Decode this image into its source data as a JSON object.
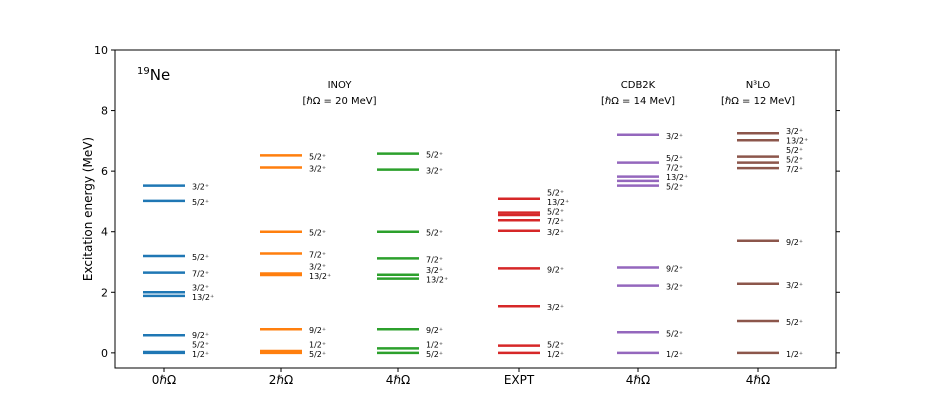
{
  "chart_data": {
    "type": "level-scheme",
    "ylabel": "Excitation energy (MeV)",
    "ylim": [
      -0.5,
      10
    ],
    "yticks": [
      0,
      2,
      4,
      6,
      8,
      10
    ],
    "nucleus": {
      "mass": "19",
      "symbol": "Ne"
    },
    "method_titles": [
      {
        "line1": "INOY",
        "line2": "[ℏΩ = 20 MeV]",
        "column_span": [
          1,
          2
        ]
      },
      {
        "line1": "CDB2K",
        "line2": "[ℏΩ = 14 MeV]",
        "column_span": [
          4,
          4
        ]
      },
      {
        "line1": "N³LO",
        "line2": "[ℏΩ = 12 MeV]",
        "column_span": [
          5,
          5
        ]
      }
    ],
    "columns": [
      {
        "label": "0ℏΩ",
        "color": "#1f77b4",
        "levels": [
          {
            "e": 5.52,
            "spin": "3/2⁺"
          },
          {
            "e": 5.02,
            "spin": "5/2⁺"
          },
          {
            "e": 3.2,
            "spin": "5/2⁺"
          },
          {
            "e": 2.65,
            "spin": "7/2⁺"
          },
          {
            "e": 2.0,
            "spin": "3/2⁺"
          },
          {
            "e": 1.88,
            "spin": "13/2⁺"
          },
          {
            "e": 0.58,
            "spin": "9/2⁺"
          },
          {
            "e": 0.03,
            "spin": "5/2⁺"
          },
          {
            "e": 0.0,
            "spin": "1/2⁺"
          }
        ]
      },
      {
        "label": "2ℏΩ",
        "color": "#ff7f0e",
        "levels": [
          {
            "e": 6.52,
            "spin": "5/2⁺"
          },
          {
            "e": 6.12,
            "spin": "3/2⁺"
          },
          {
            "e": 4.0,
            "spin": "5/2⁺"
          },
          {
            "e": 3.28,
            "spin": "7/2⁺"
          },
          {
            "e": 2.62,
            "spin": "3/2⁺"
          },
          {
            "e": 2.57,
            "spin": "13/2⁺"
          },
          {
            "e": 0.78,
            "spin": "9/2⁺"
          },
          {
            "e": 0.06,
            "spin": "1/2⁺"
          },
          {
            "e": 0.0,
            "spin": "5/2⁺"
          }
        ]
      },
      {
        "label": "4ℏΩ",
        "color": "#2ca02c",
        "levels": [
          {
            "e": 6.58,
            "spin": "5/2⁺"
          },
          {
            "e": 6.05,
            "spin": "3/2⁺"
          },
          {
            "e": 4.0,
            "spin": "5/2⁺"
          },
          {
            "e": 3.12,
            "spin": "7/2⁺"
          },
          {
            "e": 2.58,
            "spin": "3/2⁺"
          },
          {
            "e": 2.45,
            "spin": "13/2⁺"
          },
          {
            "e": 0.78,
            "spin": "9/2⁺"
          },
          {
            "e": 0.15,
            "spin": "1/2⁺"
          },
          {
            "e": 0.0,
            "spin": "5/2⁺"
          }
        ]
      },
      {
        "label": "EXPT",
        "color": "#d62728",
        "levels": [
          {
            "e": 5.09,
            "spin": "5/2⁺"
          },
          {
            "e": 4.63,
            "spin": "13/2⁺"
          },
          {
            "e": 4.55,
            "spin": "5/2⁺"
          },
          {
            "e": 4.38,
            "spin": "7/2⁺"
          },
          {
            "e": 4.03,
            "spin": "3/2⁺"
          },
          {
            "e": 2.79,
            "spin": "9/2⁺"
          },
          {
            "e": 1.54,
            "spin": "3/2⁺"
          },
          {
            "e": 0.24,
            "spin": "5/2⁺"
          },
          {
            "e": 0.0,
            "spin": "1/2⁺"
          }
        ]
      },
      {
        "label": "4ℏΩ",
        "color": "#9467bd",
        "levels": [
          {
            "e": 7.2,
            "spin": "3/2⁺"
          },
          {
            "e": 6.28,
            "spin": "5/2⁺"
          },
          {
            "e": 5.82,
            "spin": "7/2⁺"
          },
          {
            "e": 5.68,
            "spin": "13/2⁺"
          },
          {
            "e": 5.52,
            "spin": "5/2⁺"
          },
          {
            "e": 2.82,
            "spin": "9/2⁺"
          },
          {
            "e": 2.22,
            "spin": "3/2⁺"
          },
          {
            "e": 0.68,
            "spin": "5/2⁺"
          },
          {
            "e": 0.0,
            "spin": "1/2⁺"
          }
        ]
      },
      {
        "label": "4ℏΩ",
        "color": "#8c564b",
        "levels": [
          {
            "e": 7.25,
            "spin": "3/2⁺"
          },
          {
            "e": 7.02,
            "spin": "13/2⁺"
          },
          {
            "e": 6.48,
            "spin": "5/2⁺"
          },
          {
            "e": 6.28,
            "spin": "5/2⁺"
          },
          {
            "e": 6.1,
            "spin": "7/2⁺"
          },
          {
            "e": 3.7,
            "spin": "9/2⁺"
          },
          {
            "e": 2.28,
            "spin": "3/2⁺"
          },
          {
            "e": 1.05,
            "spin": "5/2⁺"
          },
          {
            "e": 0.0,
            "spin": "1/2⁺"
          }
        ]
      }
    ]
  }
}
